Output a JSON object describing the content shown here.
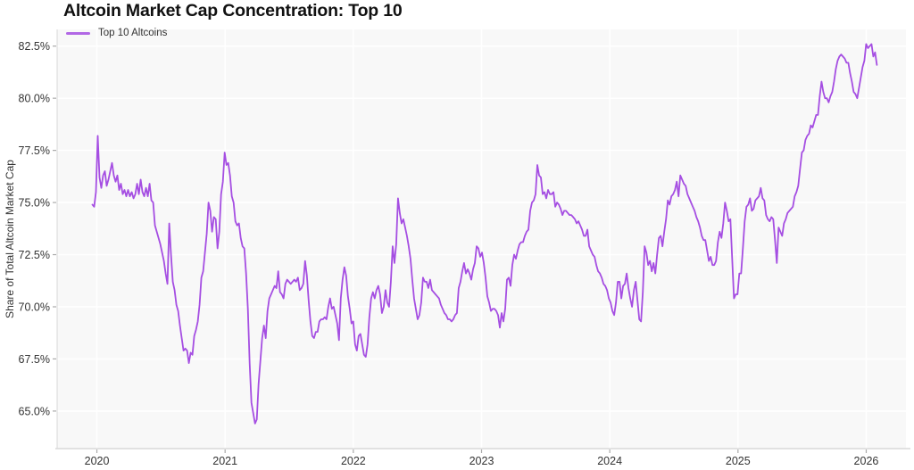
{
  "page": {
    "title": "Altcoin Market Cap Concentration: Top 10"
  },
  "colors": {
    "line": "#a54ee2",
    "plot_background": "#f8f8f8",
    "gridline": "#ffffff",
    "axis_line": "#d9d9d9",
    "tick_mark": "#aaaaaa",
    "tick_text": "#333333",
    "title_text": "#111111"
  },
  "chart_data": {
    "type": "line",
    "title": "Altcoin Market Cap Concentration: Top 10",
    "xlabel": "",
    "ylabel": "Share of Total Altcoin Market Cap",
    "legend_position": "top-left",
    "grid": true,
    "legend": [
      {
        "label": "Top 10 Altcoins",
        "color": "#a54ee2"
      }
    ],
    "x_ticks": [
      2020,
      2021,
      2022,
      2023,
      2024,
      2025,
      2026
    ],
    "x_tick_labels": [
      "2020",
      "2021",
      "2022",
      "2023",
      "2024",
      "2025",
      "2026"
    ],
    "y_ticks": [
      65.0,
      67.5,
      70.0,
      72.5,
      75.0,
      77.5,
      80.0,
      82.5
    ],
    "y_tick_labels": [
      "65.0%",
      "67.5%",
      "70.0%",
      "72.5%",
      "75.0%",
      "77.5%",
      "80.0%",
      "82.5%"
    ],
    "xlim": [
      2019.69,
      2026.31
    ],
    "ylim": [
      63.2,
      83.3
    ],
    "series": [
      {
        "name": "Top 10 Altcoins",
        "color": "#a54ee2",
        "unit": "%",
        "x_start": 2019.965,
        "x_step": 0.013937,
        "values": [
          74.9,
          74.8,
          75.5,
          78.2,
          76.2,
          75.7,
          76.3,
          76.5,
          75.8,
          76.1,
          76.5,
          76.9,
          76.3,
          76.0,
          76.3,
          75.6,
          75.9,
          75.4,
          75.6,
          75.3,
          75.6,
          75.3,
          75.5,
          75.2,
          75.4,
          75.9,
          75.4,
          76.1,
          75.5,
          75.3,
          75.7,
          75.3,
          75.9,
          75.1,
          75.0,
          73.9,
          73.6,
          73.3,
          73.0,
          72.6,
          72.2,
          71.6,
          71.1,
          74.0,
          72.5,
          71.2,
          70.8,
          70.1,
          69.8,
          69.1,
          68.5,
          67.9,
          68.0,
          67.9,
          67.3,
          67.8,
          67.7,
          68.6,
          68.9,
          69.3,
          70.1,
          71.4,
          71.7,
          72.6,
          73.5,
          75.0,
          74.6,
          73.6,
          74.3,
          74.2,
          72.8,
          73.6,
          75.4,
          76.0,
          77.4,
          76.8,
          76.9,
          76.3,
          75.3,
          75.0,
          74.1,
          73.9,
          74.0,
          73.3,
          72.9,
          72.8,
          71.6,
          69.9,
          67.3,
          65.4,
          64.9,
          64.4,
          64.6,
          66.3,
          67.4,
          68.5,
          69.1,
          68.5,
          69.8,
          70.4,
          70.6,
          70.8,
          71.0,
          70.9,
          71.7,
          70.7,
          70.6,
          70.4,
          71.1,
          71.3,
          71.2,
          71.1,
          71.2,
          71.3,
          71.2,
          71.4,
          70.8,
          70.9,
          71.1,
          72.2,
          71.5,
          70.3,
          69.3,
          68.6,
          68.5,
          68.8,
          68.8,
          69.3,
          69.4,
          69.4,
          69.5,
          69.4,
          70.0,
          70.4,
          69.9,
          70.0,
          69.6,
          69.2,
          68.4,
          70.4,
          71.3,
          71.9,
          71.5,
          70.5,
          69.9,
          69.2,
          69.3,
          68.2,
          67.9,
          68.6,
          68.7,
          68.2,
          67.7,
          67.6,
          68.2,
          69.5,
          70.4,
          70.7,
          70.4,
          70.8,
          71.0,
          70.6,
          69.7,
          70.0,
          70.8,
          70.2,
          70.0,
          71.2,
          72.9,
          72.1,
          73.0,
          75.2,
          74.5,
          74.0,
          74.2,
          73.8,
          73.4,
          72.9,
          72.3,
          71.3,
          70.4,
          69.9,
          69.4,
          69.6,
          70.2,
          71.4,
          71.2,
          71.2,
          70.9,
          71.3,
          70.8,
          70.7,
          70.6,
          70.5,
          70.4,
          70.1,
          69.9,
          69.7,
          69.6,
          69.4,
          69.4,
          69.3,
          69.4,
          69.6,
          69.7,
          70.9,
          71.2,
          71.7,
          72.1,
          71.6,
          71.8,
          71.6,
          71.3,
          71.8,
          72.1,
          72.9,
          72.8,
          72.4,
          72.6,
          72.1,
          71.4,
          70.5,
          70.2,
          69.8,
          69.9,
          69.9,
          69.8,
          69.6,
          69.0,
          69.7,
          69.3,
          69.9,
          71.3,
          71.4,
          71.0,
          72.0,
          72.5,
          72.3,
          72.7,
          73.0,
          73.1,
          73.1,
          73.4,
          73.6,
          73.7,
          74.6,
          75.0,
          75.1,
          75.4,
          76.8,
          76.3,
          76.2,
          75.4,
          75.5,
          75.2,
          75.6,
          75.4,
          75.4,
          75.5,
          74.8,
          75.0,
          74.9,
          74.7,
          74.4,
          74.6,
          74.6,
          74.5,
          74.4,
          74.4,
          74.3,
          74.2,
          74.0,
          74.1,
          73.9,
          73.7,
          73.4,
          73.4,
          73.7,
          72.9,
          72.7,
          72.5,
          72.4,
          72.0,
          71.7,
          71.6,
          71.4,
          71.1,
          71.0,
          70.8,
          70.4,
          70.2,
          69.8,
          69.6,
          70.2,
          71.2,
          71.2,
          70.4,
          71.0,
          71.1,
          71.6,
          70.9,
          70.4,
          70.0,
          70.8,
          71.2,
          70.3,
          69.4,
          69.3,
          70.7,
          72.9,
          72.6,
          72.0,
          72.2,
          71.7,
          72.1,
          71.6,
          72.5,
          73.3,
          73.4,
          72.9,
          73.6,
          74.2,
          75.1,
          74.9,
          75.3,
          75.4,
          75.6,
          76.0,
          75.3,
          76.3,
          76.1,
          75.9,
          75.8,
          75.4,
          75.2,
          75.0,
          74.8,
          74.6,
          74.3,
          74.1,
          73.8,
          73.4,
          73.2,
          73.2,
          72.7,
          72.2,
          72.4,
          72.0,
          72.0,
          72.2,
          73.1,
          73.6,
          73.3,
          74.0,
          75.0,
          74.6,
          74.1,
          74.2,
          72.3,
          70.4,
          70.6,
          70.6,
          71.6,
          71.6,
          72.8,
          74.1,
          74.8,
          74.9,
          75.2,
          74.6,
          74.7,
          75.1,
          75.2,
          75.3,
          75.7,
          75.2,
          75.1,
          74.4,
          74.2,
          74.1,
          74.3,
          74.2,
          73.2,
          72.1,
          73.8,
          73.6,
          73.4,
          74.0,
          74.2,
          74.5,
          74.6,
          74.7,
          74.8,
          75.3,
          75.5,
          75.8,
          76.6,
          77.4,
          77.5,
          78.0,
          78.2,
          78.3,
          78.7,
          78.6,
          78.9,
          79.2,
          79.2,
          80.1,
          80.8,
          80.3,
          80.0,
          80.0,
          79.8,
          80.1,
          80.3,
          80.8,
          81.4,
          81.8,
          82.0,
          82.1,
          82.0,
          81.9,
          81.7,
          81.7,
          81.2,
          80.8,
          80.3,
          80.2,
          80.0,
          80.5,
          81.0,
          81.5,
          81.8,
          82.6,
          82.4,
          82.5,
          82.6,
          82.0,
          82.2,
          81.6
        ]
      }
    ]
  }
}
